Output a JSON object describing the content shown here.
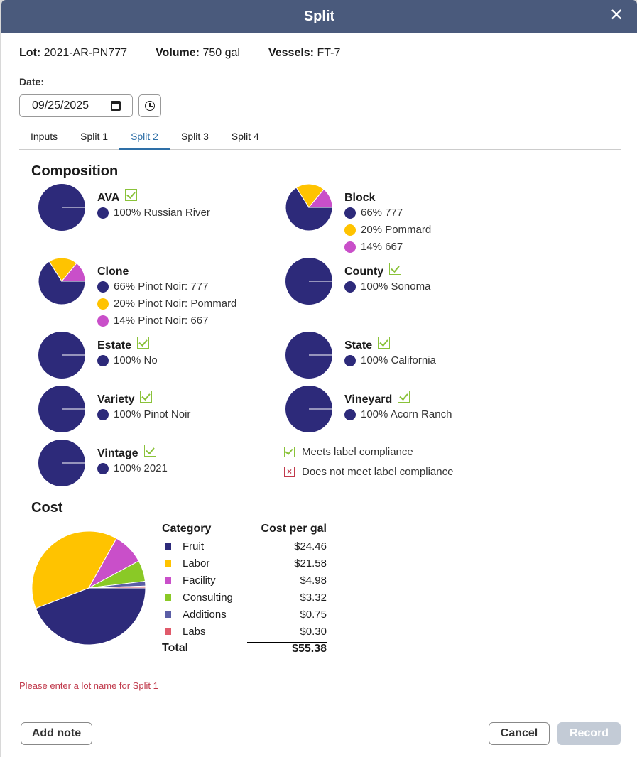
{
  "dialog": {
    "title": "Split",
    "close_icon": "close-icon"
  },
  "info": {
    "lot_label": "Lot:",
    "lot_value": "2021-AR-PN777",
    "volume_label": "Volume:",
    "volume_value": "750 gal",
    "vessels_label": "Vessels:",
    "vessels_value": "FT-7"
  },
  "date": {
    "label": "Date:",
    "value": "09/25/2025"
  },
  "tabs": [
    "Inputs",
    "Split 1",
    "Split 2",
    "Split 3",
    "Split 4"
  ],
  "active_tab": "Split 2",
  "composition": {
    "title": "Composition",
    "items": [
      {
        "label": "AVA",
        "compliant": true,
        "entries": [
          {
            "text": "100% Russian River",
            "color": "#2d2a7a",
            "pct": 100
          }
        ]
      },
      {
        "label": "Block",
        "compliant": false,
        "entries": [
          {
            "text": "66% 777",
            "color": "#2d2a7a",
            "pct": 66
          },
          {
            "text": "20% Pommard",
            "color": "#ffc300",
            "pct": 20
          },
          {
            "text": "14% 667",
            "color": "#c94fc9",
            "pct": 14
          }
        ]
      },
      {
        "label": "Clone",
        "compliant": false,
        "entries": [
          {
            "text": "66% Pinot Noir: 777",
            "color": "#2d2a7a",
            "pct": 66
          },
          {
            "text": "20% Pinot Noir: Pommard",
            "color": "#ffc300",
            "pct": 20
          },
          {
            "text": "14% Pinot Noir: 667",
            "color": "#c94fc9",
            "pct": 14
          }
        ]
      },
      {
        "label": "County",
        "compliant": true,
        "entries": [
          {
            "text": "100% Sonoma",
            "color": "#2d2a7a",
            "pct": 100
          }
        ]
      },
      {
        "label": "Estate",
        "compliant": true,
        "entries": [
          {
            "text": "100% No",
            "color": "#2d2a7a",
            "pct": 100
          }
        ]
      },
      {
        "label": "State",
        "compliant": true,
        "entries": [
          {
            "text": "100% California",
            "color": "#2d2a7a",
            "pct": 100
          }
        ]
      },
      {
        "label": "Variety",
        "compliant": true,
        "entries": [
          {
            "text": "100% Pinot Noir",
            "color": "#2d2a7a",
            "pct": 100
          }
        ]
      },
      {
        "label": "Vineyard",
        "compliant": true,
        "entries": [
          {
            "text": "100% Acorn Ranch",
            "color": "#2d2a7a",
            "pct": 100
          }
        ]
      },
      {
        "label": "Vintage",
        "compliant": true,
        "entries": [
          {
            "text": "100% 2021",
            "color": "#2d2a7a",
            "pct": 100
          }
        ]
      }
    ],
    "legend_meets": "Meets label compliance",
    "legend_not_meets": "Does not meet label compliance"
  },
  "cost": {
    "title": "Cost",
    "col_category": "Category",
    "col_cost": "Cost per gal",
    "rows": [
      {
        "category": "Fruit",
        "cost": "$24.46",
        "value": 24.46,
        "color": "#2d2a7a"
      },
      {
        "category": "Labor",
        "cost": "$21.58",
        "value": 21.58,
        "color": "#ffc300"
      },
      {
        "category": "Facility",
        "cost": "$4.98",
        "value": 4.98,
        "color": "#c94fc9"
      },
      {
        "category": "Consulting",
        "cost": "$3.32",
        "value": 3.32,
        "color": "#8ac926"
      },
      {
        "category": "Additions",
        "cost": "$0.75",
        "value": 0.75,
        "color": "#5b5ea6"
      },
      {
        "category": "Labs",
        "cost": "$0.30",
        "value": 0.3,
        "color": "#e05a6b"
      }
    ],
    "total_label": "Total",
    "total_value": "$55.38"
  },
  "error": "Please enter a lot name for Split 1",
  "buttons": {
    "add_note": "Add note",
    "cancel": "Cancel",
    "record": "Record"
  }
}
